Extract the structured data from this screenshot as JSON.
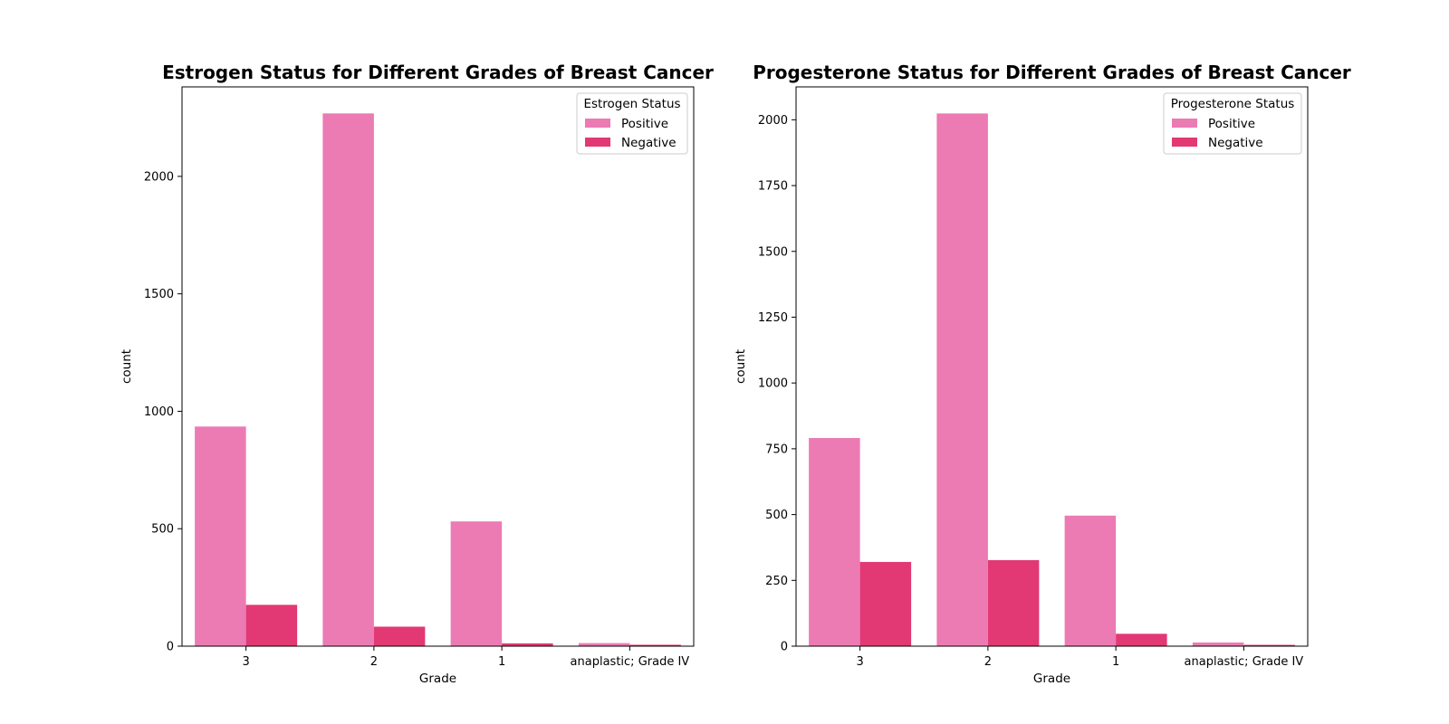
{
  "chart_data": [
    {
      "type": "bar",
      "title": "Estrogen Status for Different Grades of Breast Cancer",
      "xlabel": "Grade",
      "ylabel": "count",
      "categories": [
        "3",
        "2",
        "1",
        "anaplastic; Grade IV"
      ],
      "series": [
        {
          "name": "Positive",
          "values": [
            935,
            2268,
            531,
            13
          ],
          "color": "#ec7ab3"
        },
        {
          "name": "Negative",
          "values": [
            176,
            83,
            12,
            6
          ],
          "color": "#e23873"
        }
      ],
      "yticks": [
        0,
        500,
        1000,
        1500,
        2000
      ],
      "ylim": [
        0,
        2381
      ],
      "legend": {
        "title": "Estrogen Status",
        "position": "top-right"
      }
    },
    {
      "type": "bar",
      "title": "Progesterone Status for Different Grades of Breast Cancer",
      "xlabel": "Grade",
      "ylabel": "count",
      "categories": [
        "3",
        "2",
        "1",
        "anaplastic; Grade IV"
      ],
      "series": [
        {
          "name": "Positive",
          "values": [
            791,
            2024,
            496,
            14
          ],
          "color": "#ec7ab3"
        },
        {
          "name": "Negative",
          "values": [
            320,
            327,
            47,
            5
          ],
          "color": "#e23873"
        }
      ],
      "yticks": [
        0,
        250,
        500,
        750,
        1000,
        1250,
        1500,
        1750,
        2000
      ],
      "ylim": [
        0,
        2125
      ],
      "legend": {
        "title": "Progesterone Status",
        "position": "top-right"
      }
    }
  ]
}
